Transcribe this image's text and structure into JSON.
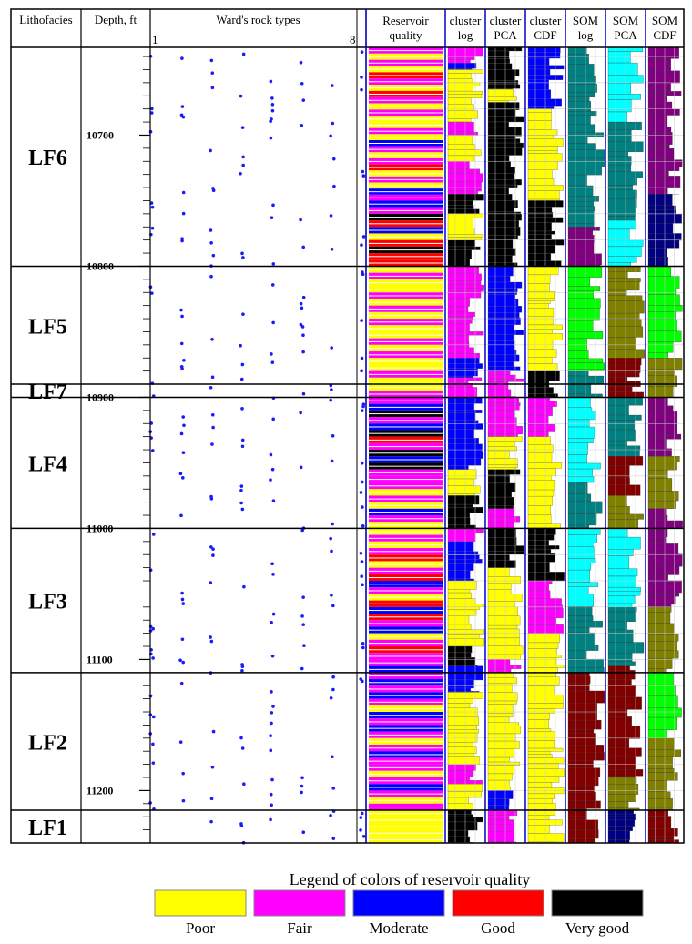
{
  "chart_data": {
    "type": "well-log",
    "columns": [
      {
        "key": "lithofacies",
        "label": "Lithofacies"
      },
      {
        "key": "depth",
        "label": "Depth, ft"
      },
      {
        "key": "wards",
        "label": "Ward's rock types",
        "min_label": "1",
        "max_label": "8"
      },
      {
        "key": "rq",
        "label": "Reservoir quality"
      },
      {
        "key": "clog",
        "label": "cluster log"
      },
      {
        "key": "cpca",
        "label": "cluster PCA"
      },
      {
        "key": "ccdf",
        "label": "cluster CDF"
      },
      {
        "key": "slog",
        "label": "SOM log"
      },
      {
        "key": "spca",
        "label": "SOM PCA"
      },
      {
        "key": "scdf",
        "label": "SOM CDF"
      }
    ],
    "depth_range": [
      10633,
      11240
    ],
    "depth_ticks": [
      "10700",
      "10800",
      "10900",
      "11000",
      "11100",
      "11200"
    ],
    "facies": [
      {
        "name": "LF6",
        "top": 10633,
        "base": 10800
      },
      {
        "name": "LF5",
        "top": 10800,
        "base": 10890
      },
      {
        "name": "LF7",
        "top": 10890,
        "base": 10900
      },
      {
        "name": "LF4",
        "top": 10900,
        "base": 11000
      },
      {
        "name": "LF3",
        "top": 11000,
        "base": 11110
      },
      {
        "name": "LF2",
        "top": 11110,
        "base": 11215
      },
      {
        "name": "LF1",
        "top": 11215,
        "base": 11240
      }
    ],
    "quality_legend": {
      "title": "Legend of colors of reservoir quality",
      "items": [
        {
          "label": "Poor",
          "color": "#ffff00"
        },
        {
          "label": "Fair",
          "color": "#ff00ff"
        },
        {
          "label": "Moderate",
          "color": "#0000ff"
        },
        {
          "label": "Good",
          "color": "#ff0000"
        },
        {
          "label": "Very good",
          "color": "#000000"
        }
      ]
    },
    "som_colors": [
      "#008080",
      "#00ffff",
      "#808000",
      "#800000",
      "#800080",
      "#00ff00",
      "#000080",
      "#0000ff"
    ],
    "wards_scale": [
      1,
      8
    ],
    "tracks": {
      "rq": [
        {
          "from": 10633,
          "to": 10690,
          "codes": [
            "Fair",
            "Poor",
            "Fair",
            "Poor",
            "Good",
            "Fair",
            "Poor",
            "Good",
            "Fair",
            "Poor",
            "Fair",
            "Poor"
          ]
        },
        {
          "from": 10690,
          "to": 10750,
          "codes": [
            "Poor",
            "Fair",
            "Poor",
            "Moderate",
            "Fair",
            "Poor",
            "Fair",
            "Good",
            "Poor",
            "Fair",
            "Poor",
            "Moderate",
            "Fair"
          ]
        },
        {
          "from": 10750,
          "to": 10800,
          "codes": [
            "Moderate",
            "Fair",
            "Very good",
            "Good",
            "Moderate",
            "Poor",
            "Good",
            "Very good",
            "Good",
            "Good"
          ]
        },
        {
          "from": 10800,
          "to": 10900,
          "codes": [
            "Poor",
            "Fair",
            "Poor",
            "Poor",
            "Fair",
            "Poor",
            "Fair",
            "Poor",
            "Fair",
            "Poor",
            "Poor",
            "Fair",
            "Poor",
            "Fair",
            "Poor",
            "Poor",
            "Fair",
            "Poor",
            "Poor",
            "Fair"
          ]
        },
        {
          "from": 10900,
          "to": 10960,
          "codes": [
            "Fair",
            "Moderate",
            "Very good",
            "Fair",
            "Moderate",
            "Very good",
            "Good",
            "Fair",
            "Very good",
            "Moderate",
            "Very good",
            "Fair"
          ]
        },
        {
          "from": 10960,
          "to": 11000,
          "codes": [
            "Fair",
            "Fair",
            "Poor",
            "Fair",
            "Poor",
            "Moderate",
            "Fair",
            "Poor"
          ]
        },
        {
          "from": 11000,
          "to": 11060,
          "codes": [
            "Poor",
            "Fair",
            "Poor",
            "Fair",
            "Good",
            "Poor",
            "Fair",
            "Good",
            "Moderate",
            "Fair",
            "Poor",
            "Good"
          ]
        },
        {
          "from": 11060,
          "to": 11110,
          "codes": [
            "Moderate",
            "Good",
            "Fair",
            "Moderate",
            "Poor",
            "Fair",
            "Good",
            "Fair",
            "Fair",
            "Moderate"
          ]
        },
        {
          "from": 11110,
          "to": 11215,
          "codes": [
            "Fair",
            "Moderate",
            "Fair",
            "Moderate",
            "Fair",
            "Poor",
            "Moderate",
            "Fair",
            "Moderate",
            "Fair",
            "Poor",
            "Fair",
            "Moderate",
            "Fair",
            "Fair",
            "Poor",
            "Fair",
            "Moderate",
            "Fair",
            "Poor",
            "Fair"
          ]
        },
        {
          "from": 11215,
          "to": 11240,
          "codes": [
            "Poor",
            "Poor",
            "Poor",
            "Poor",
            "Poor"
          ]
        }
      ],
      "clog": [
        {
          "from": 10633,
          "to": 10645,
          "code": "Fair"
        },
        {
          "from": 10645,
          "to": 10650,
          "code": "Moderate"
        },
        {
          "from": 10650,
          "to": 10660,
          "code": "Poor"
        },
        {
          "from": 10660,
          "to": 10690,
          "code": "Poor"
        },
        {
          "from": 10690,
          "to": 10700,
          "code": "Fair"
        },
        {
          "from": 10700,
          "to": 10720,
          "code": "Poor"
        },
        {
          "from": 10720,
          "to": 10745,
          "code": "Fair"
        },
        {
          "from": 10745,
          "to": 10760,
          "code": "Very good"
        },
        {
          "from": 10760,
          "to": 10780,
          "code": "Poor"
        },
        {
          "from": 10780,
          "to": 10800,
          "code": "Very good"
        },
        {
          "from": 10800,
          "to": 10870,
          "code": "Fair"
        },
        {
          "from": 10870,
          "to": 10885,
          "code": "Moderate"
        },
        {
          "from": 10885,
          "to": 10900,
          "code": "Fair"
        },
        {
          "from": 10900,
          "to": 10920,
          "code": "Moderate"
        },
        {
          "from": 10920,
          "to": 10955,
          "code": "Moderate"
        },
        {
          "from": 10955,
          "to": 10975,
          "code": "Poor"
        },
        {
          "from": 10975,
          "to": 10992,
          "code": "Very good"
        },
        {
          "from": 10992,
          "to": 11000,
          "code": "Very good"
        },
        {
          "from": 11000,
          "to": 11010,
          "code": "Fair"
        },
        {
          "from": 11010,
          "to": 11040,
          "code": "Moderate"
        },
        {
          "from": 11040,
          "to": 11060,
          "code": "Poor"
        },
        {
          "from": 11060,
          "to": 11090,
          "code": "Poor"
        },
        {
          "from": 11090,
          "to": 11105,
          "code": "Very good"
        },
        {
          "from": 11105,
          "to": 11125,
          "code": "Moderate"
        },
        {
          "from": 11125,
          "to": 11180,
          "code": "Poor"
        },
        {
          "from": 11180,
          "to": 11195,
          "code": "Fair"
        },
        {
          "from": 11195,
          "to": 11215,
          "code": "Poor"
        },
        {
          "from": 11215,
          "to": 11240,
          "code": "Very good"
        }
      ],
      "cpca": [
        {
          "from": 10633,
          "to": 10650,
          "code": "Very good"
        },
        {
          "from": 10650,
          "to": 10665,
          "code": "Very good"
        },
        {
          "from": 10665,
          "to": 10675,
          "code": "Poor"
        },
        {
          "from": 10675,
          "to": 10745,
          "code": "Very good"
        },
        {
          "from": 10745,
          "to": 10760,
          "code": "Very good"
        },
        {
          "from": 10760,
          "to": 10800,
          "code": "Very good"
        },
        {
          "from": 10800,
          "to": 10880,
          "code": "Moderate"
        },
        {
          "from": 10880,
          "to": 10900,
          "code": "Fair"
        },
        {
          "from": 10900,
          "to": 10930,
          "code": "Fair"
        },
        {
          "from": 10930,
          "to": 10955,
          "code": "Poor"
        },
        {
          "from": 10955,
          "to": 10985,
          "code": "Very good"
        },
        {
          "from": 10985,
          "to": 11000,
          "code": "Fair"
        },
        {
          "from": 11000,
          "to": 11030,
          "code": "Very good"
        },
        {
          "from": 11030,
          "to": 11060,
          "code": "Poor"
        },
        {
          "from": 11060,
          "to": 11100,
          "code": "Poor"
        },
        {
          "from": 11100,
          "to": 11110,
          "code": "Fair"
        },
        {
          "from": 11110,
          "to": 11200,
          "code": "Poor"
        },
        {
          "from": 11200,
          "to": 11215,
          "code": "Moderate"
        },
        {
          "from": 11215,
          "to": 11240,
          "code": "Fair"
        }
      ],
      "ccdf": [
        {
          "from": 10633,
          "to": 10680,
          "code": "Moderate"
        },
        {
          "from": 10680,
          "to": 10700,
          "code": "Poor"
        },
        {
          "from": 10700,
          "to": 10750,
          "code": "Poor"
        },
        {
          "from": 10750,
          "to": 10800,
          "code": "Very good"
        },
        {
          "from": 10800,
          "to": 10880,
          "code": "Poor"
        },
        {
          "from": 10880,
          "to": 10900,
          "code": "Very good"
        },
        {
          "from": 10900,
          "to": 10930,
          "code": "Fair"
        },
        {
          "from": 10930,
          "to": 10960,
          "code": "Poor"
        },
        {
          "from": 10960,
          "to": 11000,
          "code": "Poor"
        },
        {
          "from": 11000,
          "to": 11040,
          "code": "Very good"
        },
        {
          "from": 11040,
          "to": 11080,
          "code": "Fair"
        },
        {
          "from": 11080,
          "to": 11110,
          "code": "Poor"
        },
        {
          "from": 11110,
          "to": 11170,
          "code": "Poor"
        },
        {
          "from": 11170,
          "to": 11215,
          "code": "Poor"
        },
        {
          "from": 11215,
          "to": 11240,
          "code": "Poor"
        }
      ],
      "slog": [
        {
          "from": 10633,
          "to": 10770,
          "c": 0
        },
        {
          "from": 10770,
          "to": 10800,
          "c": 4
        },
        {
          "from": 10800,
          "to": 10880,
          "c": 5
        },
        {
          "from": 10880,
          "to": 10900,
          "c": 0
        },
        {
          "from": 10900,
          "to": 10935,
          "c": 1
        },
        {
          "from": 10935,
          "to": 10965,
          "c": 1
        },
        {
          "from": 10965,
          "to": 11000,
          "c": 0
        },
        {
          "from": 11000,
          "to": 11060,
          "c": 1
        },
        {
          "from": 11060,
          "to": 11110,
          "c": 0
        },
        {
          "from": 11110,
          "to": 11240,
          "c": 3
        }
      ],
      "spca": [
        {
          "from": 10633,
          "to": 10690,
          "c": 1
        },
        {
          "from": 10690,
          "to": 10765,
          "c": 0
        },
        {
          "from": 10765,
          "to": 10800,
          "c": 1
        },
        {
          "from": 10800,
          "to": 10870,
          "c": 2
        },
        {
          "from": 10870,
          "to": 10900,
          "c": 3
        },
        {
          "from": 10900,
          "to": 10945,
          "c": 0
        },
        {
          "from": 10945,
          "to": 10975,
          "c": 3
        },
        {
          "from": 10975,
          "to": 11000,
          "c": 2
        },
        {
          "from": 11000,
          "to": 11060,
          "c": 1
        },
        {
          "from": 11060,
          "to": 11105,
          "c": 0
        },
        {
          "from": 11105,
          "to": 11190,
          "c": 3
        },
        {
          "from": 11190,
          "to": 11215,
          "c": 2
        },
        {
          "from": 11215,
          "to": 11240,
          "c": 6
        }
      ],
      "scdf": [
        {
          "from": 10633,
          "to": 10680,
          "c": 4
        },
        {
          "from": 10680,
          "to": 10745,
          "c": 4
        },
        {
          "from": 10745,
          "to": 10800,
          "c": 6
        },
        {
          "from": 10800,
          "to": 10870,
          "c": 5
        },
        {
          "from": 10870,
          "to": 10900,
          "c": 2
        },
        {
          "from": 10900,
          "to": 10945,
          "c": 4
        },
        {
          "from": 10945,
          "to": 10985,
          "c": 2
        },
        {
          "from": 10985,
          "to": 11000,
          "c": 4
        },
        {
          "from": 11000,
          "to": 11060,
          "c": 4
        },
        {
          "from": 11060,
          "to": 11110,
          "c": 2
        },
        {
          "from": 11110,
          "to": 11160,
          "c": 5
        },
        {
          "from": 11160,
          "to": 11215,
          "c": 2
        },
        {
          "from": 11215,
          "to": 11240,
          "c": 3
        }
      ]
    }
  }
}
